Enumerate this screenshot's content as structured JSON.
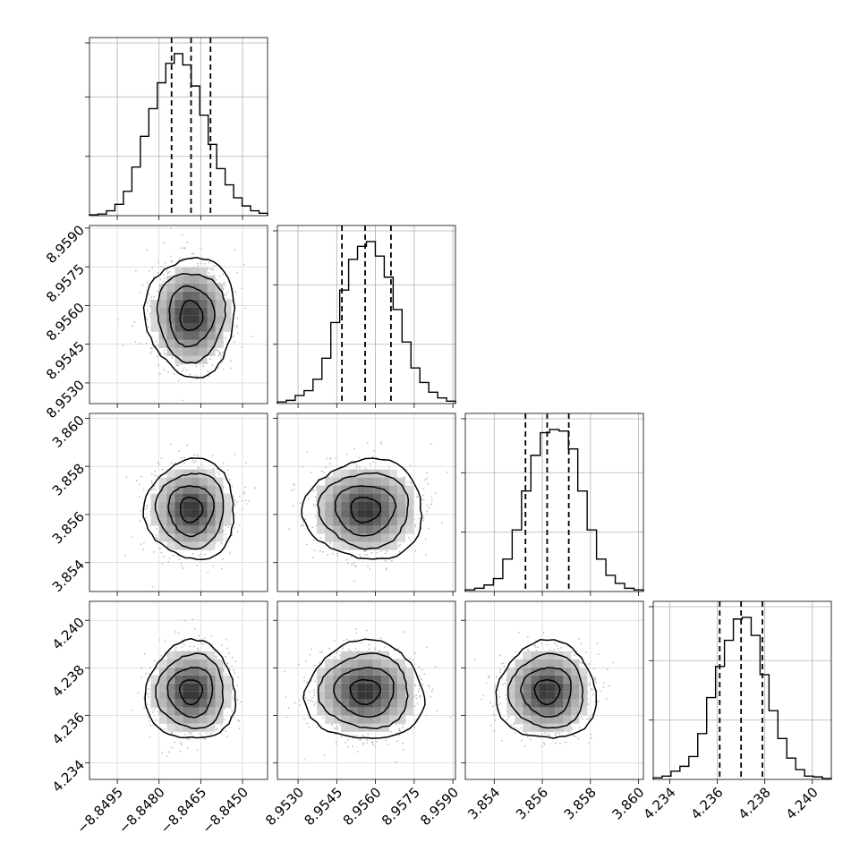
{
  "chart_data": {
    "type": "corner",
    "title": "",
    "parameters": [
      {
        "range": [
          -8.8505,
          -8.8441
        ],
        "ticks": [
          -8.8495,
          -8.848,
          -8.8465,
          -8.845
        ],
        "tick_labels": [
          "−8.8495",
          "−8.8480",
          "−8.8465",
          "−8.8450"
        ],
        "quantiles": [
          -8.84755,
          -8.84685,
          -8.84615
        ],
        "hist": [
          0.5,
          1,
          3,
          7,
          15,
          30,
          49,
          66,
          82,
          94,
          100,
          93,
          80,
          62,
          44,
          29,
          19,
          11,
          6,
          3,
          1.5
        ]
      },
      {
        "range": [
          8.9522,
          8.9591
        ],
        "ticks": [
          8.953,
          8.9545,
          8.956,
          8.9575,
          8.959
        ],
        "tick_labels": [
          "8.9530",
          "8.9545",
          "8.9560",
          "8.9575",
          "8.9590"
        ],
        "quantiles": [
          8.9547,
          8.9556,
          8.9566
        ],
        "hist": [
          1,
          2,
          5,
          8,
          15,
          28,
          50,
          70,
          89,
          97,
          100,
          91,
          78,
          58,
          38,
          22,
          13,
          7,
          3.5,
          1.5
        ]
      },
      {
        "range": [
          3.8528,
          3.8602
        ],
        "ticks": [
          3.854,
          3.856,
          3.858,
          3.86
        ],
        "tick_labels": [
          "3.854",
          "3.856",
          "3.858",
          "3.860"
        ],
        "quantiles": [
          3.8553,
          3.8562,
          3.8571
        ],
        "hist": [
          1,
          2,
          4,
          8,
          20,
          38,
          62,
          84,
          98,
          100,
          99,
          88,
          62,
          38,
          20,
          10,
          5,
          2,
          1
        ]
      },
      {
        "range": [
          4.2333,
          4.2408
        ],
        "ticks": [
          4.234,
          4.236,
          4.238,
          4.24
        ],
        "tick_labels": [
          "4.234",
          "4.236",
          "4.238",
          "4.240"
        ],
        "quantiles": [
          4.2361,
          4.237,
          4.2379
        ],
        "hist": [
          1,
          2,
          5,
          8,
          14,
          28,
          50,
          69,
          85,
          98,
          99,
          88,
          64,
          42,
          25,
          13,
          6,
          2,
          1.5,
          0.5
        ]
      }
    ],
    "contour_levels_sigma": [
      0.5,
      1,
      1.5,
      2
    ],
    "grid": true
  }
}
